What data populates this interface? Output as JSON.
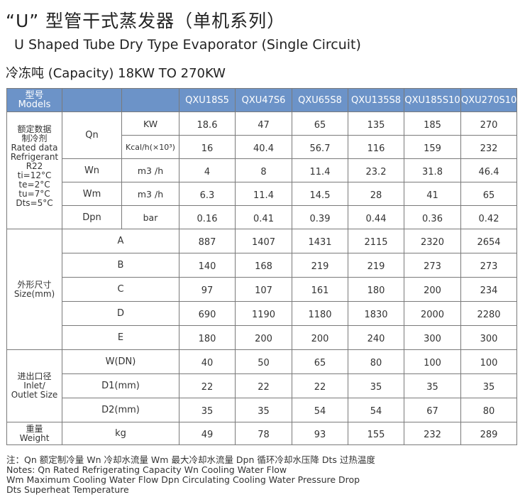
{
  "title_cn": "“U” 型管干式蒸发器（单机系列）",
  "title_en": "U Shaped Tube Dry Type Evaporator (Single Circuit)",
  "capacity": "冷冻吨 (Capacity) 18KW TO 270KW",
  "header": {
    "models_cn": "型号",
    "models_en": "Models",
    "models": [
      "QXU18S5",
      "QXU47S6",
      "QXU65S8",
      "QXU135S8",
      "QXU185S10",
      "QXU270S10"
    ]
  },
  "rated_group": {
    "lines": [
      "额定数据",
      "制冷剂",
      "Rated data",
      "Refrigerant",
      "R22",
      "ti=12°C",
      "te=2°C",
      "tu=7°C",
      "Dts=5°C"
    ]
  },
  "rated_rows": [
    {
      "param": "Qn",
      "unit": "KW",
      "values": [
        "18.6",
        "47",
        "65",
        "135",
        "185",
        "270"
      ]
    },
    {
      "param": "",
      "unit": "Kcal/h(×10³)",
      "values": [
        "16",
        "40.4",
        "56.7",
        "116",
        "159",
        "232"
      ]
    },
    {
      "param": "Wn",
      "unit": "m3 /h",
      "values": [
        "4",
        "8",
        "11.4",
        "23.2",
        "31.8",
        "46.4"
      ]
    },
    {
      "param": "Wm",
      "unit": "m3 /h",
      "values": [
        "6.3",
        "11.4",
        "14.5",
        "28",
        "41",
        "65"
      ]
    },
    {
      "param": "Dpn",
      "unit": "bar",
      "values": [
        "0.16",
        "0.41",
        "0.39",
        "0.44",
        "0.36",
        "0.42"
      ]
    }
  ],
  "dims_group": {
    "cn": "外形尺寸",
    "en": "Size(mm)"
  },
  "dims_rows": [
    {
      "label": "A",
      "values": [
        "887",
        "1407",
        "1431",
        "2115",
        "2320",
        "2654"
      ]
    },
    {
      "label": "B",
      "values": [
        "140",
        "168",
        "219",
        "219",
        "273",
        "273"
      ]
    },
    {
      "label": "C",
      "values": [
        "97",
        "107",
        "161",
        "180",
        "200",
        "234"
      ]
    },
    {
      "label": "D",
      "values": [
        "690",
        "1190",
        "1180",
        "1830",
        "2000",
        "2280"
      ]
    },
    {
      "label": "E",
      "values": [
        "180",
        "200",
        "200",
        "240",
        "300",
        "300"
      ]
    }
  ],
  "io_group": {
    "cn": "进出口径",
    "en1": "Inlet/",
    "en2": "Outlet Size"
  },
  "io_rows": [
    {
      "label": "W(DN)",
      "values": [
        "40",
        "50",
        "65",
        "80",
        "100",
        "100"
      ]
    },
    {
      "label": "D1(mm)",
      "values": [
        "22",
        "22",
        "22",
        "35",
        "35",
        "35"
      ]
    },
    {
      "label": "D2(mm)",
      "values": [
        "35",
        "35",
        "54",
        "54",
        "67",
        "80"
      ]
    }
  ],
  "weight_group": {
    "cn": "重量",
    "en": "Weight"
  },
  "weight_row": {
    "label": "kg",
    "values": [
      "49",
      "78",
      "93",
      "155",
      "232",
      "289"
    ]
  },
  "notes": [
    "注：Qn 额定制冷量 Wn 冷却水流量 Wm  最大冷却水流量  Dpn  循环冷却水压降 Dts 过热温度",
    "Notes: Qn Rated Refrigerating Capacity  Wn Cooling Water Flow",
    "Wm  Maximum Cooling Water Flow   Dpn  Circulating Cooling Water Pressure Drop",
    "Dts Superheat Temperature"
  ]
}
